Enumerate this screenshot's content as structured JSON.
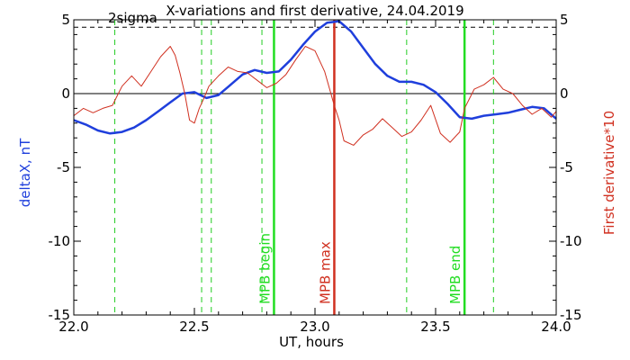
{
  "chart_data": {
    "type": "line",
    "title": "X-variations and first derivative, 24.04.2019",
    "xlabel": "UT, hours",
    "ylabel_left": "deltaX, nT",
    "ylabel_right": "First derivative*10",
    "xlim": [
      22.0,
      24.0
    ],
    "ylim": [
      -15,
      5
    ],
    "xticks": [
      "22.0",
      "22.5",
      "23.0",
      "23.5",
      "24.0"
    ],
    "yticks_left": [
      "5",
      "0",
      "-5",
      "-10",
      "-15"
    ],
    "yticks_right": [
      "5",
      "0",
      "-5",
      "-10",
      "-15"
    ],
    "threshold": {
      "label": "2sigma",
      "value": 4.5,
      "style": "dashed"
    },
    "zero_line": 0,
    "colors": {
      "deltaX": "#1f3fdc",
      "derivative": "#d03020",
      "mpb_solid": "#22dd22",
      "mpb_dashed": "#22cc22",
      "mpb_max": "#d03020"
    },
    "series": [
      {
        "role": "deltaX",
        "axis": "left",
        "x": [
          22.0,
          22.05,
          22.1,
          22.15,
          22.2,
          22.25,
          22.3,
          22.35,
          22.4,
          22.45,
          22.5,
          22.55,
          22.6,
          22.65,
          22.7,
          22.75,
          22.8,
          22.85,
          22.9,
          22.95,
          23.0,
          23.05,
          23.1,
          23.15,
          23.2,
          23.25,
          23.3,
          23.35,
          23.4,
          23.45,
          23.5,
          23.55,
          23.6,
          23.65,
          23.7,
          23.75,
          23.8,
          23.85,
          23.9,
          23.95,
          24.0
        ],
        "y": [
          -1.8,
          -2.1,
          -2.5,
          -2.7,
          -2.6,
          -2.3,
          -1.8,
          -1.2,
          -0.6,
          0.0,
          0.1,
          -0.3,
          -0.1,
          0.6,
          1.3,
          1.6,
          1.4,
          1.5,
          2.3,
          3.3,
          4.2,
          4.8,
          4.9,
          4.2,
          3.1,
          2.0,
          1.2,
          0.8,
          0.8,
          0.6,
          0.1,
          -0.7,
          -1.6,
          -1.7,
          -1.5,
          -1.4,
          -1.3,
          -1.1,
          -0.9,
          -1.0,
          -1.7
        ]
      },
      {
        "role": "derivative",
        "axis": "right",
        "x": [
          22.0,
          22.04,
          22.08,
          22.12,
          22.16,
          22.2,
          22.24,
          22.28,
          22.32,
          22.36,
          22.4,
          22.42,
          22.44,
          22.46,
          22.48,
          22.5,
          22.52,
          22.54,
          22.56,
          22.6,
          22.64,
          22.68,
          22.72,
          22.76,
          22.8,
          22.84,
          22.88,
          22.92,
          22.96,
          23.0,
          23.04,
          23.08,
          23.1,
          23.12,
          23.16,
          23.2,
          23.24,
          23.28,
          23.32,
          23.36,
          23.4,
          23.44,
          23.48,
          23.52,
          23.56,
          23.6,
          23.62,
          23.66,
          23.7,
          23.74,
          23.78,
          23.82,
          23.86,
          23.9,
          23.94,
          23.98,
          24.0
        ],
        "y": [
          -1.5,
          -1.0,
          -1.3,
          -1.0,
          -0.8,
          0.5,
          1.2,
          0.5,
          1.5,
          2.5,
          3.2,
          2.6,
          1.4,
          0.0,
          -1.8,
          -2.0,
          -1.0,
          -0.3,
          0.5,
          1.2,
          1.8,
          1.5,
          1.4,
          0.9,
          0.4,
          0.7,
          1.3,
          2.3,
          3.2,
          2.9,
          1.5,
          -0.8,
          -1.8,
          -3.2,
          -3.5,
          -2.8,
          -2.4,
          -1.7,
          -2.3,
          -2.9,
          -2.6,
          -1.8,
          -0.8,
          -2.7,
          -3.3,
          -2.6,
          -1.0,
          0.3,
          0.6,
          1.1,
          0.3,
          0.0,
          -0.8,
          -1.4,
          -1.0,
          -1.6,
          -1.2
        ]
      }
    ],
    "vlines": [
      {
        "x": 22.17,
        "style": "dashed",
        "color_key": "mpb_dashed"
      },
      {
        "x": 22.53,
        "style": "dashed",
        "color_key": "mpb_dashed"
      },
      {
        "x": 22.57,
        "style": "dashed",
        "color_key": "mpb_dashed"
      },
      {
        "x": 22.78,
        "style": "dashed",
        "color_key": "mpb_dashed"
      },
      {
        "x": 22.83,
        "style": "solid",
        "color_key": "mpb_solid",
        "label": "MPB begin"
      },
      {
        "x": 23.08,
        "style": "solid",
        "color_key": "mpb_max",
        "label": "MPB max"
      },
      {
        "x": 23.38,
        "style": "dashed",
        "color_key": "mpb_dashed"
      },
      {
        "x": 23.62,
        "style": "solid",
        "color_key": "mpb_solid",
        "label": "MPB end"
      },
      {
        "x": 23.74,
        "style": "dashed",
        "color_key": "mpb_dashed"
      }
    ]
  }
}
